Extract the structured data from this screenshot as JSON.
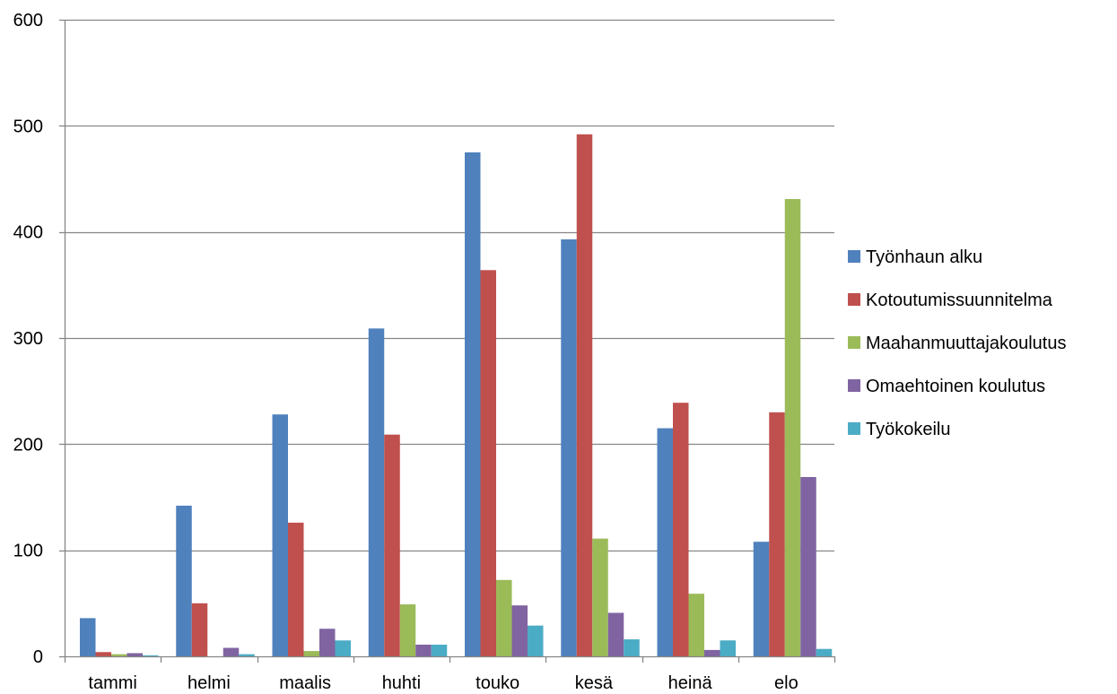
{
  "chart_data": {
    "type": "bar",
    "categories": [
      "tammi",
      "helmi",
      "maalis",
      "huhti",
      "touko",
      "kesä",
      "heinä",
      "elo"
    ],
    "series": [
      {
        "name": "Työnhaun alku",
        "color": "#4F81BD",
        "values": [
          36,
          142,
          228,
          309,
          475,
          393,
          215,
          108
        ]
      },
      {
        "name": "Kotoutumissuunnitelma",
        "color": "#C0504D",
        "values": [
          4,
          50,
          126,
          209,
          364,
          492,
          239,
          230
        ]
      },
      {
        "name": "Maahanmuuttajakoulutus",
        "color": "#9BBB59",
        "values": [
          2,
          0,
          5,
          49,
          72,
          111,
          59,
          431
        ]
      },
      {
        "name": "Omaehtoinen koulutus",
        "color": "#8064A2",
        "values": [
          3,
          8,
          26,
          11,
          48,
          41,
          6,
          169
        ]
      },
      {
        "name": "Työkokeilu",
        "color": "#4BACC6",
        "values": [
          1,
          2,
          15,
          11,
          29,
          16,
          15,
          7
        ]
      }
    ],
    "ylim": [
      0,
      600
    ],
    "yticks": [
      0,
      100,
      200,
      300,
      400,
      500,
      600
    ],
    "grid": true,
    "legend_position": "right",
    "title": "",
    "xlabel": "",
    "ylabel": ""
  }
}
